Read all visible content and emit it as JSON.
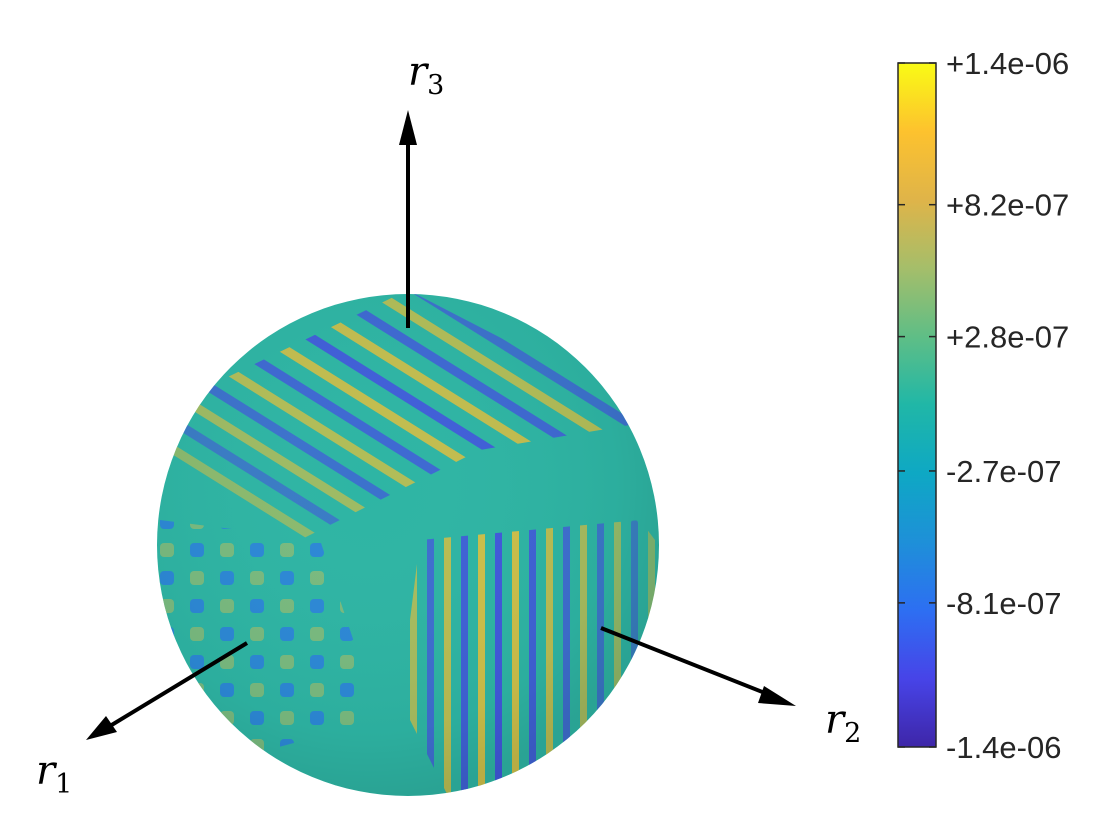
{
  "chart_data": {
    "type": "heatmap",
    "surface": "sphere",
    "axes": [
      {
        "name": "r",
        "subscript": "1"
      },
      {
        "name": "r",
        "subscript": "2"
      },
      {
        "name": "r",
        "subscript": "3"
      }
    ],
    "colorbar": {
      "colormap": "parula",
      "range": [
        -1.4e-06,
        1.4e-06
      ],
      "ticks": [
        {
          "value": 1.4e-06,
          "label": "+1.4e-06"
        },
        {
          "value": 8.2e-07,
          "label": "+8.2e-07"
        },
        {
          "value": 2.8e-07,
          "label": "+2.8e-07"
        },
        {
          "value": -2.7e-07,
          "label": "-2.7e-07"
        },
        {
          "value": -8.1e-07,
          "label": "-8.1e-07"
        },
        {
          "value": -1.4e-06,
          "label": "-1.4e-06"
        }
      ],
      "stops": [
        "#3e26a8",
        "#4744e8",
        "#2d6ff2",
        "#1e90d8",
        "#0ea8c4",
        "#20b7a7",
        "#5fbe86",
        "#a5be6a",
        "#dfb449",
        "#fdc22e",
        "#f9fb15"
      ]
    }
  }
}
